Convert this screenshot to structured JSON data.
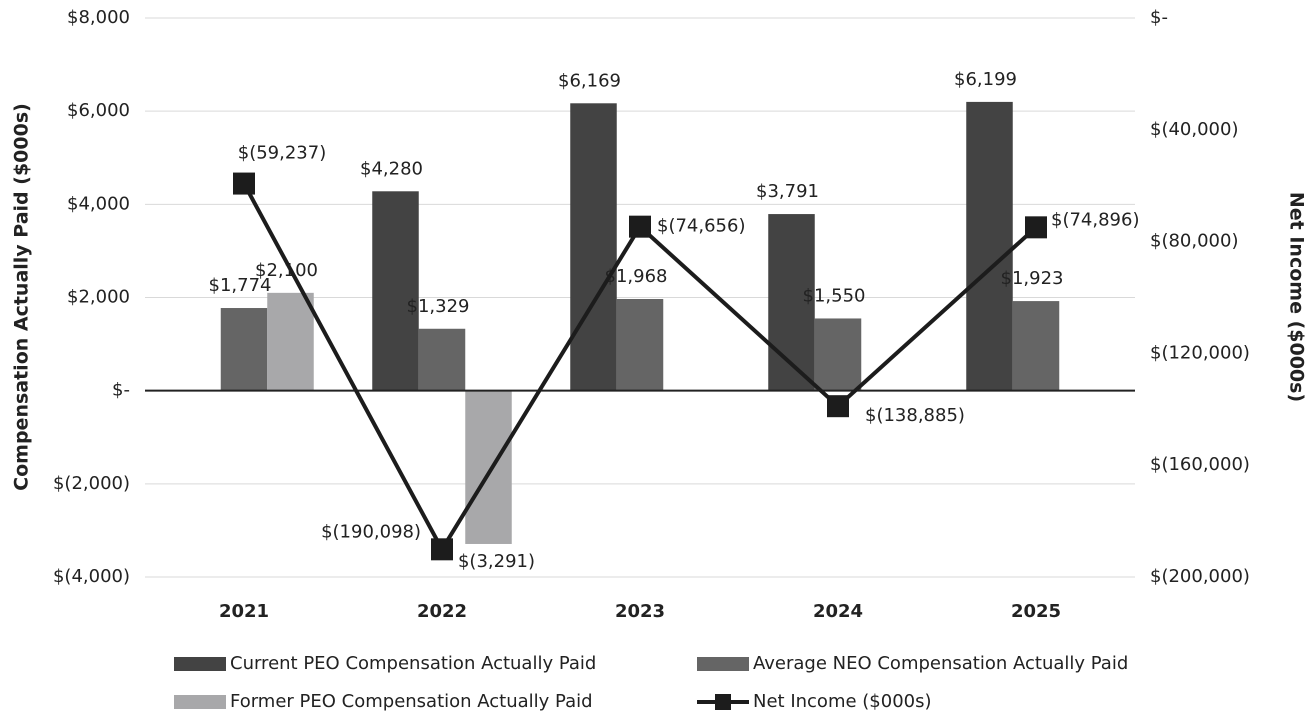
{
  "chart_data": {
    "type": "bar",
    "categories": [
      "2021",
      "2022",
      "2023",
      "2024",
      "2025"
    ],
    "y_label": "Compensation Actually Paid ($000s)",
    "y2_label": "Net Income ($000s)",
    "ylim": [
      -4000,
      8000
    ],
    "yticks": [
      {
        "value": 8000,
        "label": "$8,000"
      },
      {
        "value": 6000,
        "label": "$6,000"
      },
      {
        "value": 4000,
        "label": "$4,000"
      },
      {
        "value": 2000,
        "label": "$2,000"
      },
      {
        "value": 0,
        "label": "$-"
      },
      {
        "value": -2000,
        "label": "$(2,000)"
      },
      {
        "value": -4000,
        "label": "$(4,000)"
      }
    ],
    "y2lim": [
      -200000,
      0
    ],
    "y2ticks": [
      {
        "value": 0,
        "label": "$-"
      },
      {
        "value": -40000,
        "label": "$(40,000)"
      },
      {
        "value": -80000,
        "label": "$(80,000)"
      },
      {
        "value": -120000,
        "label": "$(120,000)"
      },
      {
        "value": -160000,
        "label": "$(160,000)"
      },
      {
        "value": -200000,
        "label": "$(200,000)"
      }
    ],
    "grid": true,
    "legend": "bottom",
    "series": [
      {
        "name": "Current PEO Compensation Actually Paid",
        "color": "#434343",
        "values": [
          null,
          4280,
          6169,
          3791,
          6199
        ],
        "value_labels": [
          null,
          "$4,280",
          "$6,169",
          "$3,791",
          "$6,199"
        ]
      },
      {
        "name": "Average NEO Compensation Actually Paid",
        "color": "#656565",
        "values": [
          1774,
          1329,
          1968,
          1550,
          1923
        ],
        "value_labels": [
          "$1,774",
          "$1,329",
          "$1,968",
          "$1,550",
          "$1,923"
        ]
      },
      {
        "name": "Former PEO Compensation Actually Paid",
        "color": "#a8a8aa",
        "values": [
          2100,
          -3291,
          null,
          null,
          null
        ],
        "value_labels": [
          "$2,100",
          "$(3,291)",
          null,
          null,
          null
        ]
      },
      {
        "name": "Net Income ($000s)",
        "color": "#1c1c1c",
        "type": "line",
        "axis": "y2",
        "values": [
          -59237,
          -190098,
          -74656,
          -138885,
          -74896
        ],
        "value_labels": [
          "$(59,237)",
          "$(190,098)",
          "$(74,656)",
          "$(138,885)",
          "$(74,896)"
        ]
      }
    ]
  }
}
